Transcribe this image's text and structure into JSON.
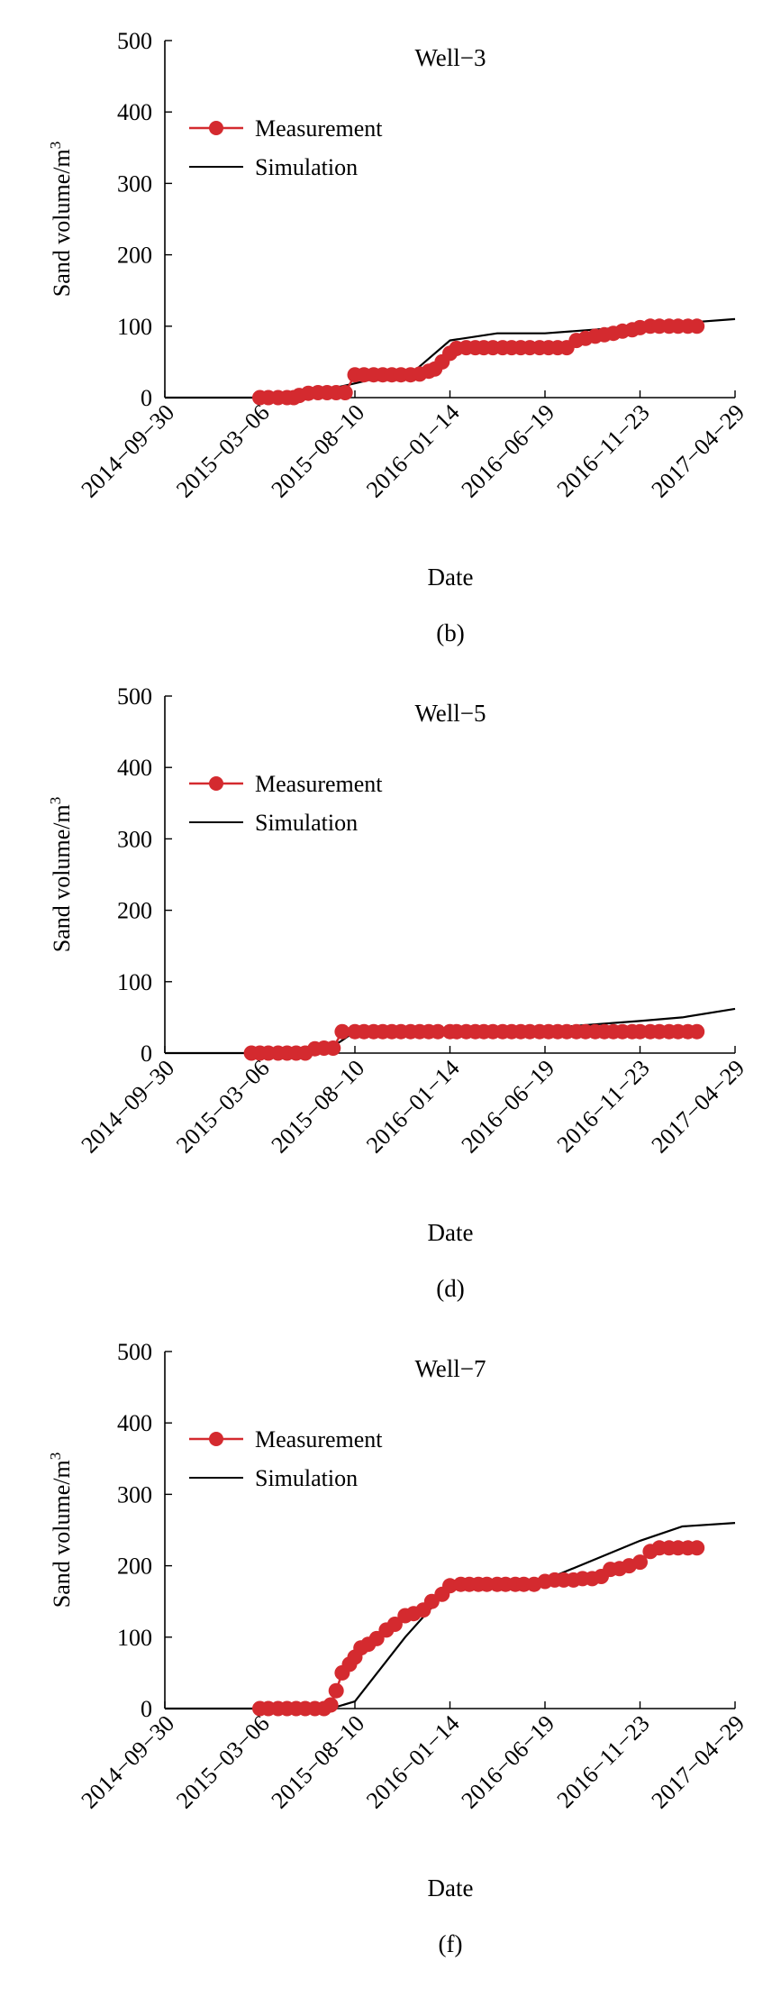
{
  "colors": {
    "measurement": "#d42a2f",
    "simulation": "#000000",
    "axis": "#000000"
  },
  "chart_data": [
    {
      "type": "line",
      "panel_label": "(b)",
      "title": "Well−3",
      "xlabel": "Date",
      "ylabel": "Sand volume/m",
      "ylabel_sup": "3",
      "x_ticks": [
        "2014−09−30",
        "2015−03−06",
        "2015−08−10",
        "2016−01−14",
        "2016−06−19",
        "2016−11−23",
        "2017−04−29"
      ],
      "y_ticks": [
        "0",
        "100",
        "200",
        "300",
        "400",
        "500"
      ],
      "ylim": [
        0,
        500
      ],
      "xlim": [
        "2014-09-30",
        "2017-04-29"
      ],
      "legend": {
        "position": "upper-left",
        "entries": [
          "Measurement",
          "Simulation"
        ]
      },
      "series": [
        {
          "name": "Measurement",
          "style": "line-with-markers",
          "x": [
            "2015-03-06",
            "2015-03-20",
            "2015-04-05",
            "2015-04-20",
            "2015-05-01",
            "2015-05-10",
            "2015-05-25",
            "2015-06-10",
            "2015-06-25",
            "2015-07-10",
            "2015-07-25",
            "2015-08-10",
            "2015-08-25",
            "2015-09-10",
            "2015-09-25",
            "2015-10-10",
            "2015-10-25",
            "2015-11-10",
            "2015-11-25",
            "2015-12-10",
            "2015-12-20",
            "2016-01-01",
            "2016-01-14",
            "2016-01-25",
            "2016-02-10",
            "2016-02-25",
            "2016-03-10",
            "2016-03-25",
            "2016-04-10",
            "2016-04-25",
            "2016-05-10",
            "2016-05-25",
            "2016-06-10",
            "2016-06-25",
            "2016-07-10",
            "2016-07-25",
            "2016-08-10",
            "2016-08-25",
            "2016-09-10",
            "2016-09-25",
            "2016-10-10",
            "2016-10-25",
            "2016-11-10",
            "2016-11-23",
            "2016-12-10",
            "2016-12-25",
            "2017-01-10",
            "2017-01-25",
            "2017-02-10",
            "2017-02-25"
          ],
          "y": [
            0,
            0,
            0,
            0,
            0,
            3,
            6,
            7,
            7,
            7,
            7,
            32,
            32,
            32,
            32,
            32,
            32,
            32,
            33,
            37,
            40,
            50,
            62,
            69,
            70,
            70,
            70,
            70,
            70,
            70,
            70,
            70,
            70,
            70,
            70,
            70,
            80,
            83,
            86,
            88,
            90,
            93,
            95,
            98,
            100,
            100,
            100,
            100,
            100,
            100
          ]
        },
        {
          "name": "Simulation",
          "style": "line",
          "x": [
            "2014-09-30",
            "2015-03-06",
            "2015-05-01",
            "2015-08-10",
            "2015-11-20",
            "2016-01-14",
            "2016-04-01",
            "2016-06-19",
            "2016-11-23",
            "2017-04-29"
          ],
          "y": [
            0,
            0,
            1,
            20,
            40,
            80,
            90,
            90,
            100,
            110
          ]
        }
      ]
    },
    {
      "type": "line",
      "panel_label": "(d)",
      "title": "Well−5",
      "xlabel": "Date",
      "ylabel": "Sand volume/m",
      "ylabel_sup": "3",
      "x_ticks": [
        "2014−09−30",
        "2015−03−06",
        "2015−08−10",
        "2016−01−14",
        "2016−06−19",
        "2016−11−23",
        "2017−04−29"
      ],
      "y_ticks": [
        "0",
        "100",
        "200",
        "300",
        "400",
        "500"
      ],
      "ylim": [
        0,
        500
      ],
      "xlim": [
        "2014-09-30",
        "2017-04-29"
      ],
      "legend": {
        "position": "upper-left",
        "entries": [
          "Measurement",
          "Simulation"
        ]
      },
      "series": [
        {
          "name": "Measurement",
          "style": "line-with-markers",
          "x": [
            "2015-02-20",
            "2015-03-06",
            "2015-03-20",
            "2015-04-05",
            "2015-04-20",
            "2015-05-05",
            "2015-05-20",
            "2015-06-05",
            "2015-06-20",
            "2015-07-05",
            "2015-07-20",
            "2015-08-10",
            "2015-08-25",
            "2015-09-10",
            "2015-09-25",
            "2015-10-10",
            "2015-10-25",
            "2015-11-10",
            "2015-11-25",
            "2015-12-10",
            "2015-12-25",
            "2016-01-14",
            "2016-01-25",
            "2016-02-10",
            "2016-02-25",
            "2016-03-10",
            "2016-03-25",
            "2016-04-10",
            "2016-04-25",
            "2016-05-10",
            "2016-05-25",
            "2016-06-10",
            "2016-06-25",
            "2016-07-10",
            "2016-07-25",
            "2016-08-10",
            "2016-08-25",
            "2016-09-10",
            "2016-09-25",
            "2016-10-10",
            "2016-10-25",
            "2016-11-10",
            "2016-11-23",
            "2016-12-10",
            "2016-12-25",
            "2017-01-10",
            "2017-01-25",
            "2017-02-10",
            "2017-02-25"
          ],
          "y": [
            0,
            0,
            0,
            0,
            0,
            0,
            0,
            6,
            7,
            7,
            30,
            30,
            30,
            30,
            30,
            30,
            30,
            30,
            30,
            30,
            30,
            30,
            30,
            30,
            30,
            30,
            30,
            30,
            30,
            30,
            30,
            30,
            30,
            30,
            30,
            30,
            30,
            30,
            30,
            30,
            30,
            30,
            30,
            30,
            30,
            30,
            30,
            30,
            30
          ]
        },
        {
          "name": "Simulation",
          "style": "line",
          "x": [
            "2014-09-30",
            "2015-05-15",
            "2015-06-15",
            "2015-07-15",
            "2015-08-10",
            "2016-01-14",
            "2016-06-19",
            "2016-11-23",
            "2017-02-01",
            "2017-04-29"
          ],
          "y": [
            0,
            0,
            2,
            15,
            30,
            32,
            35,
            45,
            50,
            62
          ]
        }
      ]
    },
    {
      "type": "line",
      "panel_label": "(f)",
      "title": "Well−7",
      "xlabel": "Date",
      "ylabel": "Sand volume/m",
      "ylabel_sup": "3",
      "x_ticks": [
        "2014−09−30",
        "2015−03−06",
        "2015−08−10",
        "2016−01−14",
        "2016−06−19",
        "2016−11−23",
        "2017−04−29"
      ],
      "y_ticks": [
        "0",
        "100",
        "200",
        "300",
        "400",
        "500"
      ],
      "ylim": [
        0,
        500
      ],
      "xlim": [
        "2014-09-30",
        "2017-04-29"
      ],
      "legend": {
        "position": "upper-left",
        "entries": [
          "Measurement",
          "Simulation"
        ]
      },
      "series": [
        {
          "name": "Measurement",
          "style": "line-with-markers",
          "x": [
            "2015-03-06",
            "2015-03-20",
            "2015-04-05",
            "2015-04-20",
            "2015-05-05",
            "2015-05-20",
            "2015-06-05",
            "2015-06-20",
            "2015-07-01",
            "2015-07-10",
            "2015-07-20",
            "2015-08-01",
            "2015-08-10",
            "2015-08-20",
            "2015-09-01",
            "2015-09-15",
            "2015-10-01",
            "2015-10-15",
            "2015-11-01",
            "2015-11-15",
            "2015-12-01",
            "2015-12-15",
            "2016-01-01",
            "2016-01-14",
            "2016-02-01",
            "2016-02-15",
            "2016-03-01",
            "2016-03-15",
            "2016-04-01",
            "2016-04-15",
            "2016-05-01",
            "2016-05-15",
            "2016-06-01",
            "2016-06-19",
            "2016-07-05",
            "2016-07-20",
            "2016-08-05",
            "2016-08-20",
            "2016-09-05",
            "2016-09-20",
            "2016-10-05",
            "2016-10-20",
            "2016-11-05",
            "2016-11-23",
            "2016-12-10",
            "2016-12-25",
            "2017-01-10",
            "2017-01-25",
            "2017-02-10",
            "2017-02-25"
          ],
          "y": [
            0,
            0,
            0,
            0,
            0,
            0,
            0,
            0,
            5,
            25,
            50,
            62,
            72,
            85,
            90,
            98,
            110,
            118,
            130,
            133,
            138,
            150,
            160,
            172,
            174,
            174,
            174,
            174,
            174,
            174,
            174,
            174,
            174,
            178,
            180,
            180,
            180,
            182,
            182,
            185,
            195,
            196,
            200,
            205,
            220,
            225,
            225,
            225,
            225,
            225
          ]
        },
        {
          "name": "Simulation",
          "style": "line",
          "x": [
            "2014-09-30",
            "2015-07-01",
            "2015-08-10",
            "2015-11-01",
            "2016-01-14",
            "2016-06-19",
            "2016-11-23",
            "2017-02-01",
            "2017-04-29"
          ],
          "y": [
            0,
            0,
            10,
            100,
            170,
            180,
            235,
            255,
            260
          ]
        }
      ]
    }
  ]
}
